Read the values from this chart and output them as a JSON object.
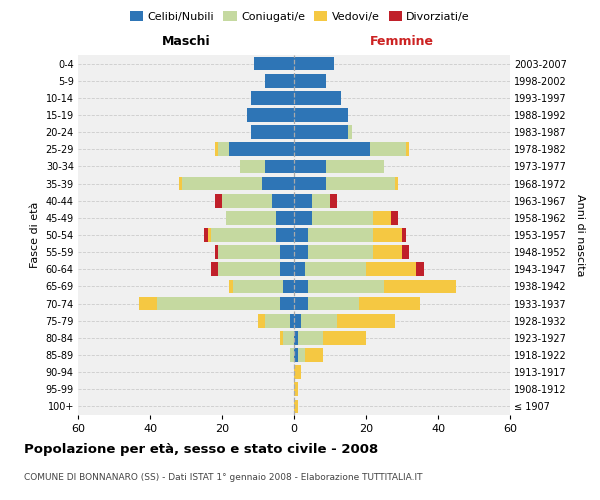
{
  "age_groups": [
    "100+",
    "95-99",
    "90-94",
    "85-89",
    "80-84",
    "75-79",
    "70-74",
    "65-69",
    "60-64",
    "55-59",
    "50-54",
    "45-49",
    "40-44",
    "35-39",
    "30-34",
    "25-29",
    "20-24",
    "15-19",
    "10-14",
    "5-9",
    "0-4"
  ],
  "birth_years": [
    "≤ 1907",
    "1908-1912",
    "1913-1917",
    "1918-1922",
    "1923-1927",
    "1928-1932",
    "1933-1937",
    "1938-1942",
    "1943-1947",
    "1948-1952",
    "1953-1957",
    "1958-1962",
    "1963-1967",
    "1968-1972",
    "1973-1977",
    "1978-1982",
    "1983-1987",
    "1988-1992",
    "1993-1997",
    "1998-2002",
    "2003-2007"
  ],
  "males": {
    "celibi": [
      0,
      0,
      0,
      0,
      0,
      1,
      4,
      3,
      4,
      4,
      5,
      5,
      6,
      9,
      8,
      18,
      12,
      13,
      12,
      8,
      11
    ],
    "coniugati": [
      0,
      0,
      0,
      1,
      3,
      7,
      34,
      14,
      17,
      17,
      18,
      14,
      14,
      22,
      7,
      3,
      0,
      0,
      0,
      0,
      0
    ],
    "vedovi": [
      0,
      0,
      0,
      0,
      1,
      2,
      5,
      1,
      0,
      0,
      1,
      0,
      0,
      1,
      0,
      1,
      0,
      0,
      0,
      0,
      0
    ],
    "divorziati": [
      0,
      0,
      0,
      0,
      0,
      0,
      0,
      0,
      2,
      1,
      1,
      0,
      2,
      0,
      0,
      0,
      0,
      0,
      0,
      0,
      0
    ]
  },
  "females": {
    "nubili": [
      0,
      0,
      0,
      1,
      1,
      2,
      4,
      4,
      3,
      4,
      4,
      5,
      5,
      9,
      9,
      21,
      15,
      15,
      13,
      9,
      11
    ],
    "coniugate": [
      0,
      0,
      0,
      2,
      7,
      10,
      14,
      21,
      17,
      18,
      18,
      17,
      5,
      19,
      16,
      10,
      1,
      0,
      0,
      0,
      0
    ],
    "vedove": [
      1,
      1,
      2,
      5,
      12,
      16,
      17,
      20,
      14,
      8,
      8,
      5,
      0,
      1,
      0,
      1,
      0,
      0,
      0,
      0,
      0
    ],
    "divorziate": [
      0,
      0,
      0,
      0,
      0,
      0,
      0,
      0,
      2,
      2,
      1,
      2,
      2,
      0,
      0,
      0,
      0,
      0,
      0,
      0,
      0
    ]
  },
  "colors": {
    "celibi": "#2e75b6",
    "coniugati": "#c5d9a0",
    "vedovi": "#f5c842",
    "divorziati": "#c0202a"
  },
  "xlim": 60,
  "title": "Popolazione per età, sesso e stato civile - 2008",
  "subtitle": "COMUNE DI BONNANARO (SS) - Dati ISTAT 1° gennaio 2008 - Elaborazione TUTTITALIA.IT",
  "ylabel_left": "Fasce di età",
  "ylabel_right": "Anni di nascita",
  "xlabel_maschi": "Maschi",
  "xlabel_femmine": "Femmine",
  "legend_labels": [
    "Celibi/Nubili",
    "Coniugati/e",
    "Vedovi/e",
    "Divorziati/e"
  ],
  "bg_color": "#f0f0f0",
  "grid_color": "#cccccc"
}
